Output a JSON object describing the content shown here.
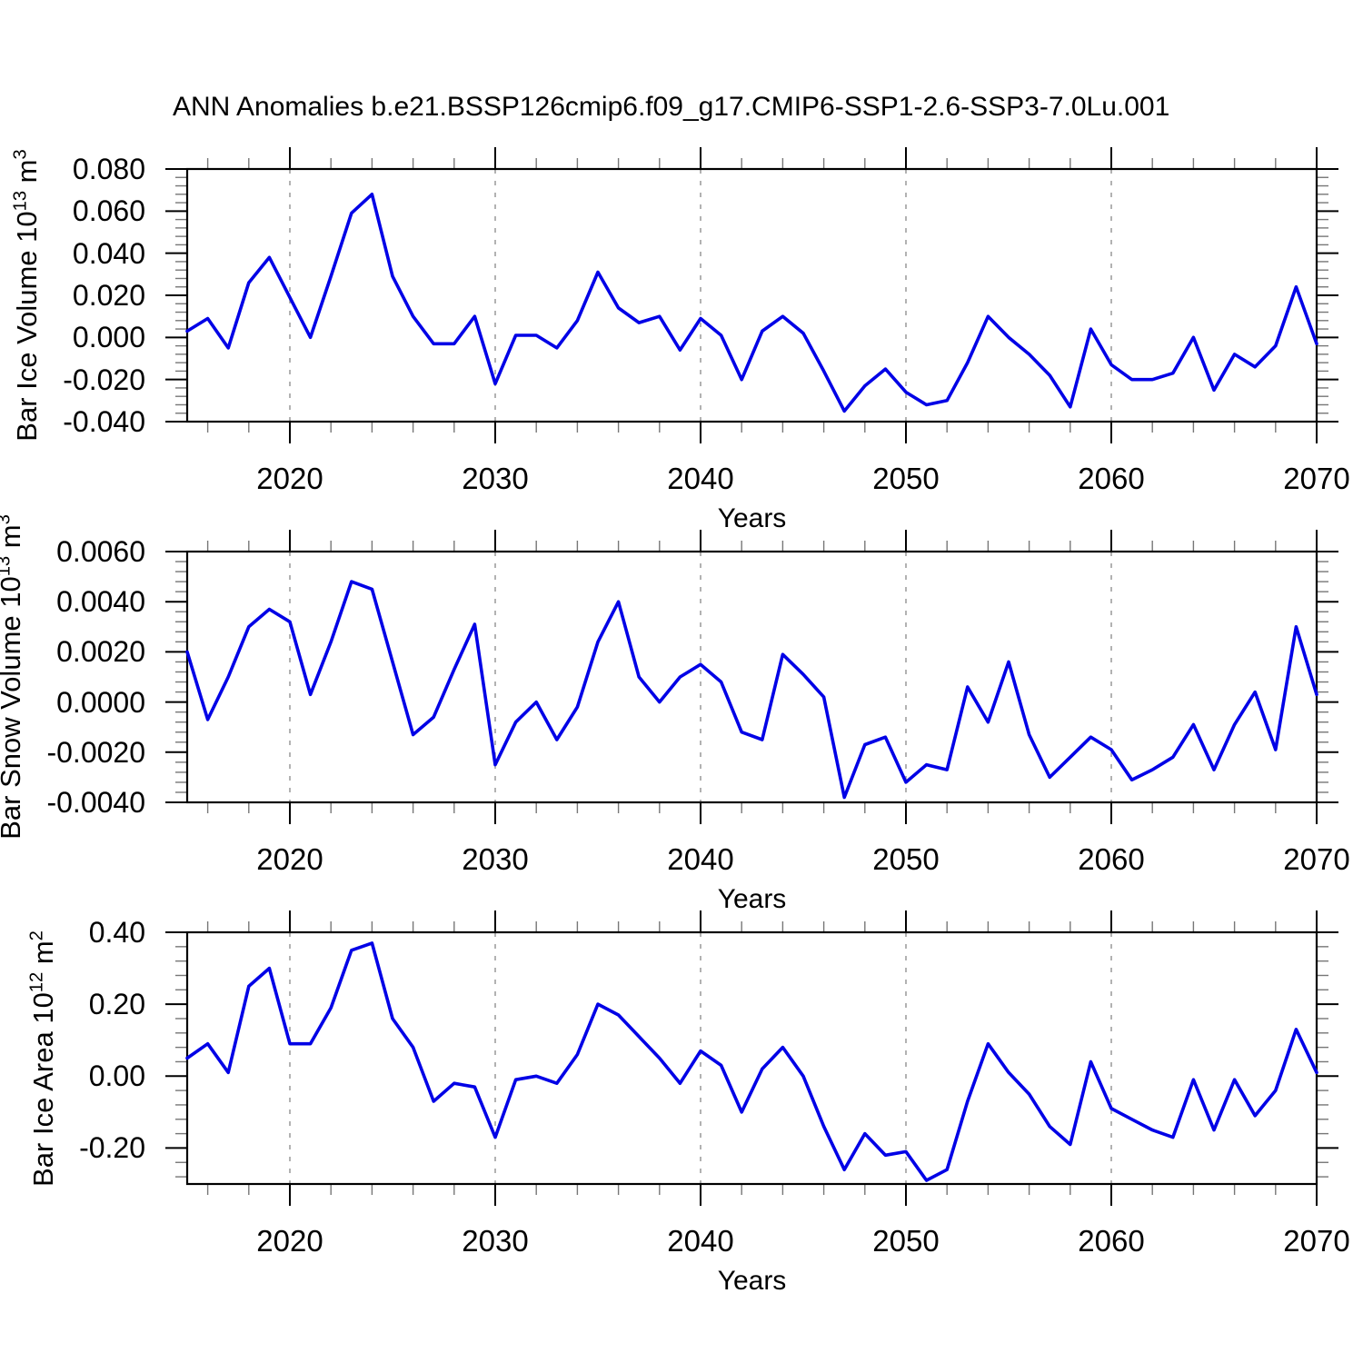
{
  "title": "ANN Anomalies b.e21.BSSP126cmip6.f09_g17.CMIP6-SSP1-2.6-SSP3-7.0Lu.001",
  "line_color": "#0000E6",
  "grid_color": "#999999",
  "axis_color": "#000000",
  "minor_tick_color": "#777777",
  "chart_data": [
    {
      "type": "line",
      "panel": "bar-ice-volume",
      "ylabel": "Bar Ice Volume 10^13 m^3",
      "ylabel_parts": [
        {
          "text": "Bar Ice Volume 10"
        },
        {
          "sup": "13"
        },
        {
          "text": " m"
        },
        {
          "sup": "3"
        }
      ],
      "xlabel": "Years",
      "xlim": [
        2015,
        2070
      ],
      "ylim": [
        -0.04,
        0.08
      ],
      "yticks": [
        0.08,
        0.06,
        0.04,
        0.02,
        0.0,
        -0.02,
        -0.04
      ],
      "ytick_labels": [
        "0.080",
        "0.060",
        "0.040",
        "0.020",
        "0.000",
        "-0.020",
        "-0.040"
      ],
      "y_minor_step": 0.004,
      "xticks": [
        2020,
        2030,
        2040,
        2050,
        2060,
        2070
      ],
      "xtick_labels": [
        "2020",
        "2030",
        "2040",
        "2050",
        "2060",
        "2070"
      ],
      "x_minor_step": 2,
      "grid_years": [
        2020,
        2030,
        2040,
        2050,
        2060
      ],
      "x": [
        2015,
        2016,
        2017,
        2018,
        2019,
        2020,
        2021,
        2022,
        2023,
        2024,
        2025,
        2026,
        2027,
        2028,
        2029,
        2030,
        2031,
        2032,
        2033,
        2034,
        2035,
        2036,
        2037,
        2038,
        2039,
        2040,
        2041,
        2042,
        2043,
        2044,
        2045,
        2046,
        2047,
        2048,
        2049,
        2050,
        2051,
        2052,
        2053,
        2054,
        2055,
        2056,
        2057,
        2058,
        2059,
        2060,
        2061,
        2062,
        2063,
        2064,
        2065,
        2066,
        2067,
        2068,
        2069,
        2070
      ],
      "values": [
        0.003,
        0.009,
        -0.005,
        0.026,
        0.038,
        0.019,
        0.0,
        0.029,
        0.059,
        0.068,
        0.029,
        0.01,
        -0.003,
        -0.003,
        0.01,
        -0.022,
        0.001,
        0.001,
        -0.005,
        0.008,
        0.031,
        0.014,
        0.007,
        0.01,
        -0.006,
        0.009,
        0.001,
        -0.02,
        0.003,
        0.01,
        0.002,
        -0.016,
        -0.035,
        -0.023,
        -0.015,
        -0.026,
        -0.032,
        -0.03,
        -0.012,
        0.01,
        0.0,
        -0.008,
        -0.018,
        -0.033,
        0.004,
        -0.013,
        -0.02,
        -0.02,
        -0.017,
        0.0,
        -0.025,
        -0.008,
        -0.014,
        -0.004,
        0.024,
        -0.003
      ]
    },
    {
      "type": "line",
      "panel": "bar-snow-volume",
      "ylabel": "Bar Snow Volume 10^13 m^3",
      "ylabel_parts": [
        {
          "text": "Bar Snow Volume 10"
        },
        {
          "sup": "13"
        },
        {
          "text": " m"
        },
        {
          "sup": "3"
        }
      ],
      "xlabel": "Years",
      "xlim": [
        2015,
        2070
      ],
      "ylim": [
        -0.004,
        0.006
      ],
      "yticks": [
        0.006,
        0.004,
        0.002,
        0.0,
        -0.002,
        -0.004
      ],
      "ytick_labels": [
        "0.0060",
        "0.0040",
        "0.0020",
        "0.0000",
        "-0.0020",
        "-0.0040"
      ],
      "y_minor_step": 0.0004,
      "xticks": [
        2020,
        2030,
        2040,
        2050,
        2060,
        2070
      ],
      "xtick_labels": [
        "2020",
        "2030",
        "2040",
        "2050",
        "2060",
        "2070"
      ],
      "x_minor_step": 2,
      "grid_years": [
        2020,
        2030,
        2040,
        2050,
        2060
      ],
      "x": [
        2015,
        2016,
        2017,
        2018,
        2019,
        2020,
        2021,
        2022,
        2023,
        2024,
        2025,
        2026,
        2027,
        2028,
        2029,
        2030,
        2031,
        2032,
        2033,
        2034,
        2035,
        2036,
        2037,
        2038,
        2039,
        2040,
        2041,
        2042,
        2043,
        2044,
        2045,
        2046,
        2047,
        2048,
        2049,
        2050,
        2051,
        2052,
        2053,
        2054,
        2055,
        2056,
        2057,
        2058,
        2059,
        2060,
        2061,
        2062,
        2063,
        2064,
        2065,
        2066,
        2067,
        2068,
        2069,
        2070
      ],
      "values": [
        0.002,
        -0.0007,
        0.001,
        0.003,
        0.0037,
        0.0032,
        0.0003,
        0.0024,
        0.0048,
        0.0045,
        0.0016,
        -0.0013,
        -0.0006,
        0.0013,
        0.0031,
        -0.0025,
        -0.0008,
        0.0,
        -0.0015,
        -0.0002,
        0.0024,
        0.004,
        0.001,
        0.0,
        0.001,
        0.0015,
        0.0008,
        -0.0012,
        -0.0015,
        0.0019,
        0.0011,
        0.0002,
        -0.0038,
        -0.0017,
        -0.0014,
        -0.0032,
        -0.0025,
        -0.0027,
        0.0006,
        -0.0008,
        0.0016,
        -0.0013,
        -0.003,
        -0.0022,
        -0.0014,
        -0.0019,
        -0.0031,
        -0.0027,
        -0.0022,
        -0.0009,
        -0.0027,
        -0.0009,
        0.0004,
        -0.0019,
        0.003,
        0.0003
      ]
    },
    {
      "type": "line",
      "panel": "bar-ice-area",
      "ylabel": "Bar Ice Area 10^12 m^2",
      "ylabel_parts": [
        {
          "text": "Bar Ice Area 10"
        },
        {
          "sup": "12"
        },
        {
          "text": " m"
        },
        {
          "sup": "2"
        }
      ],
      "xlabel": "Years",
      "xlim": [
        2015,
        2070
      ],
      "ylim": [
        -0.3,
        0.4
      ],
      "yticks": [
        0.4,
        0.2,
        0.0,
        -0.2
      ],
      "ytick_labels": [
        "0.40",
        "0.20",
        "0.00",
        "-0.20"
      ],
      "y_minor_step": 0.04,
      "xticks": [
        2020,
        2030,
        2040,
        2050,
        2060,
        2070
      ],
      "xtick_labels": [
        "2020",
        "2030",
        "2040",
        "2050",
        "2060",
        "2070"
      ],
      "x_minor_step": 2,
      "grid_years": [
        2020,
        2030,
        2040,
        2050,
        2060
      ],
      "x": [
        2015,
        2016,
        2017,
        2018,
        2019,
        2020,
        2021,
        2022,
        2023,
        2024,
        2025,
        2026,
        2027,
        2028,
        2029,
        2030,
        2031,
        2032,
        2033,
        2034,
        2035,
        2036,
        2037,
        2038,
        2039,
        2040,
        2041,
        2042,
        2043,
        2044,
        2045,
        2046,
        2047,
        2048,
        2049,
        2050,
        2051,
        2052,
        2053,
        2054,
        2055,
        2056,
        2057,
        2058,
        2059,
        2060,
        2061,
        2062,
        2063,
        2064,
        2065,
        2066,
        2067,
        2068,
        2069,
        2070
      ],
      "values": [
        0.05,
        0.09,
        0.01,
        0.25,
        0.3,
        0.09,
        0.09,
        0.19,
        0.35,
        0.37,
        0.16,
        0.08,
        -0.07,
        -0.02,
        -0.03,
        -0.17,
        -0.01,
        0.0,
        -0.02,
        0.06,
        0.2,
        0.17,
        0.11,
        0.05,
        -0.02,
        0.07,
        0.03,
        -0.1,
        0.02,
        0.08,
        0.0,
        -0.14,
        -0.26,
        -0.16,
        -0.22,
        -0.21,
        -0.29,
        -0.26,
        -0.07,
        0.09,
        0.01,
        -0.05,
        -0.14,
        -0.19,
        0.04,
        -0.09,
        -0.12,
        -0.15,
        -0.17,
        -0.01,
        -0.15,
        -0.01,
        -0.11,
        -0.04,
        0.13,
        0.01
      ]
    }
  ]
}
